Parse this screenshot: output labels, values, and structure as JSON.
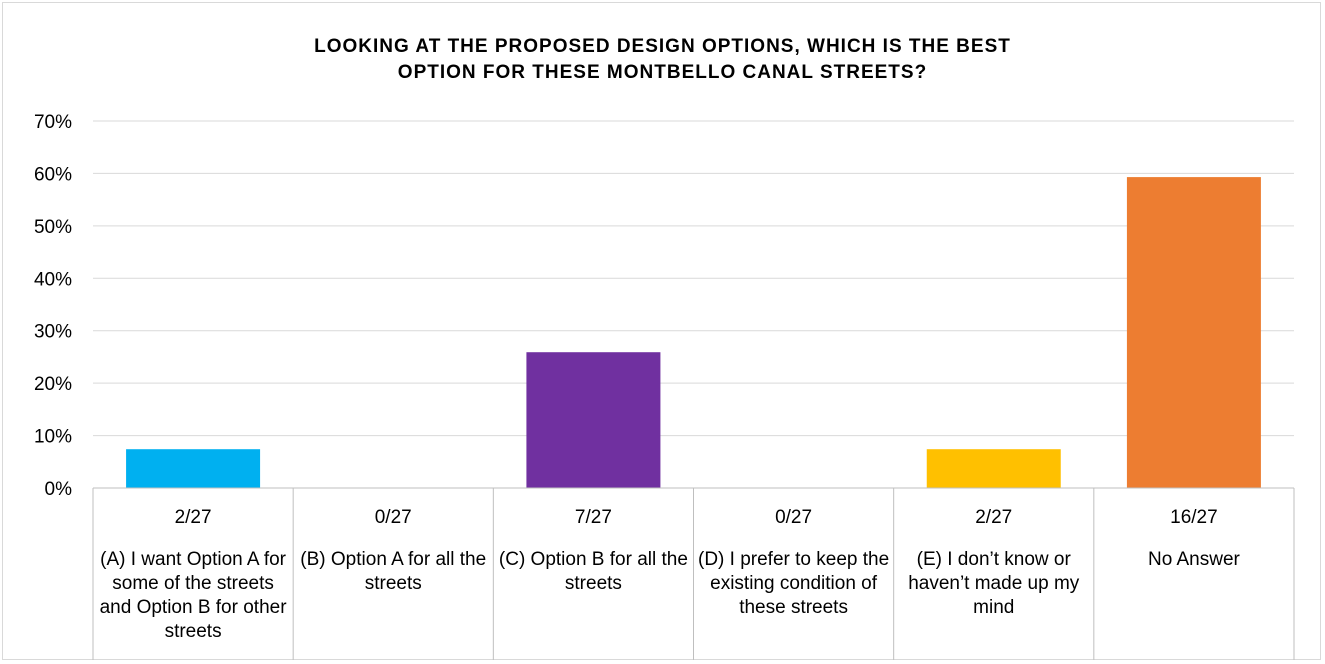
{
  "chart_data": {
    "type": "bar",
    "title_line1": "LOOKING AT THE PROPOSED DESIGN OPTIONS, WHICH IS THE BEST",
    "title_line2": "OPTION FOR THESE MONTBELLO CANAL STREETS?",
    "ylim": [
      0,
      70
    ],
    "yticks": [
      "0%",
      "10%",
      "20%",
      "30%",
      "40%",
      "50%",
      "60%",
      "70%"
    ],
    "grid": true,
    "categories": [
      "(A) I want Option A for some of the streets and Option B for other streets",
      "(B) Option A for all the streets",
      "(C) Option B for all the streets",
      "(D) I prefer to keep the existing condition of these streets",
      "(E) I don’t know or haven’t made up my mind",
      "No Answer"
    ],
    "counts": [
      "2/27",
      "0/27",
      "7/27",
      "0/27",
      "2/27",
      "16/27"
    ],
    "values": [
      7.4,
      0,
      25.9,
      0,
      7.4,
      59.3
    ],
    "colors": [
      "#00b0f0",
      "#00b0f0",
      "#7030a0",
      "#7030a0",
      "#ffc000",
      "#ed7d31"
    ]
  }
}
